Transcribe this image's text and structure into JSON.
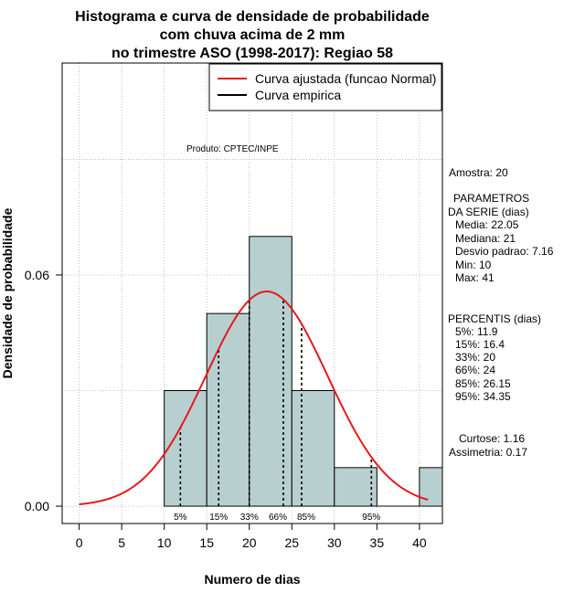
{
  "chart_data": {
    "type": "histogram",
    "title_lines": [
      "Histograma e curva de densidade de probabilidade",
      "com chuva acima de 2 mm",
      "no trimestre ASO (1998-2017): Regiao 58"
    ],
    "xlabel": "Numero de dias",
    "ylabel": "Densidade de probabilidade",
    "xlim": [
      -2,
      42.7
    ],
    "ylim": [
      -0.0045,
      0.115
    ],
    "x_ticks": [
      0,
      5,
      10,
      15,
      20,
      25,
      30,
      35,
      40
    ],
    "y_ticks": [
      0.0,
      0.06
    ],
    "y_tick_labels": [
      "0.00",
      "0.06"
    ],
    "grid": true,
    "bins": [
      {
        "from": 10,
        "to": 15,
        "density": 0.03
      },
      {
        "from": 15,
        "to": 20,
        "density": 0.05
      },
      {
        "from": 20,
        "to": 25,
        "density": 0.07
      },
      {
        "from": 25,
        "to": 30,
        "density": 0.03
      },
      {
        "from": 30,
        "to": 35,
        "density": 0.01
      },
      {
        "from": 35,
        "to": 40,
        "density": 0.0
      },
      {
        "from": 40,
        "to": 45,
        "density": 0.01
      }
    ],
    "bar_color": "#b8cfcf",
    "curve": {
      "name": "Curva ajustada (funcao Normal)",
      "mean": 22.05,
      "sd": 7.16,
      "x_from": 0,
      "x_to": 41,
      "color": "#e41a1c"
    },
    "empirical": {
      "name": "Curva empirica",
      "color": "#000000"
    },
    "percentile_lines": [
      {
        "label": "5%",
        "x": 11.9
      },
      {
        "label": "15%",
        "x": 16.4
      },
      {
        "label": "33%",
        "x": 20
      },
      {
        "label": "66%",
        "x": 24
      },
      {
        "label": "85%",
        "x": 26.15
      },
      {
        "label": "95%",
        "x": 34.35
      }
    ],
    "annotation": "Produto: CPTEC/INPE",
    "legend_position": "top-right",
    "side_panel": {
      "sample": "Amostra: 20",
      "params_title": "PARAMETROS",
      "params_subtitle": "DA SERIE (dias)",
      "params": [
        "Media: 22.05",
        "Mediana: 21",
        "Desvio padrao: 7.16",
        "Min: 10",
        "Max: 41"
      ],
      "percentiles_title": "PERCENTIS (dias)",
      "percentiles": [
        "5%: 11.9",
        "15%: 16.4",
        "33%: 20",
        "66%: 24",
        "85%: 26.15",
        "95%: 34.35"
      ],
      "kurtosis": "Curtose: 1.16",
      "skewness": "Assimetria: 0.17"
    }
  }
}
